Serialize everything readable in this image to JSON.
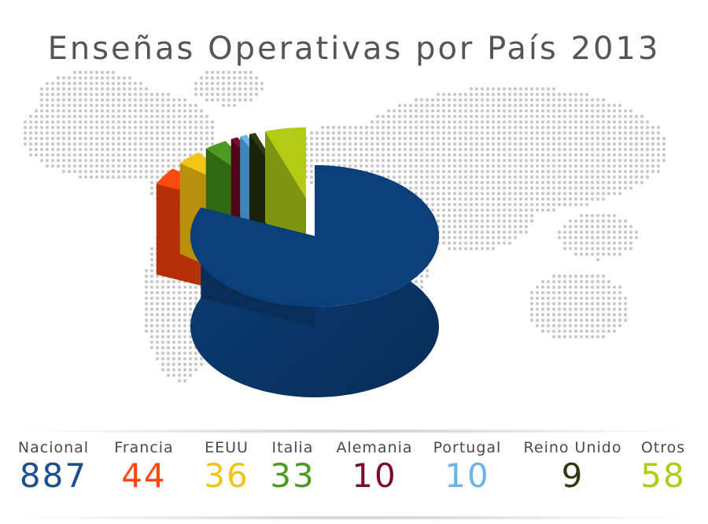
{
  "chart_data": {
    "type": "pie",
    "title": "Enseñas Operativas por País 2013",
    "categories": [
      "Nacional",
      "Francia",
      "EEUU",
      "Italia",
      "Alemania",
      "Portugal",
      "Reino Unido",
      "Otros"
    ],
    "values": [
      887,
      44,
      36,
      33,
      10,
      10,
      9,
      58
    ],
    "series": [
      {
        "name": "Nacional",
        "value": 887,
        "value_label": "887",
        "color": "#0a3f7a",
        "side_color": "#082d57"
      },
      {
        "name": "Francia",
        "value": 44,
        "value_label": "44",
        "color": "#ff4a0f",
        "side_color": "#b53008"
      },
      {
        "name": "EEUU",
        "value": 36,
        "value_label": "36",
        "color": "#f2c418",
        "side_color": "#b8900c"
      },
      {
        "name": "Italia",
        "value": 33,
        "value_label": "33",
        "color": "#4c9a22",
        "side_color": "#2f6a12"
      },
      {
        "name": "Alemania",
        "value": 10,
        "value_label": "10",
        "color": "#7a0d2a",
        "side_color": "#4e0619"
      },
      {
        "name": "Portugal",
        "value": 10,
        "value_label": "10",
        "color": "#6ab4e8",
        "side_color": "#3d85bb"
      },
      {
        "name": "Reino Unido",
        "value": 9,
        "value_label": "9",
        "color": "#2f3a12",
        "side_color": "#1a2208"
      },
      {
        "name": "Otros",
        "value": 58,
        "value_label": "58",
        "color": "#b2cc14",
        "side_color": "#7f9410"
      }
    ],
    "legend_placement": "bottom",
    "background": "dotted world map"
  }
}
